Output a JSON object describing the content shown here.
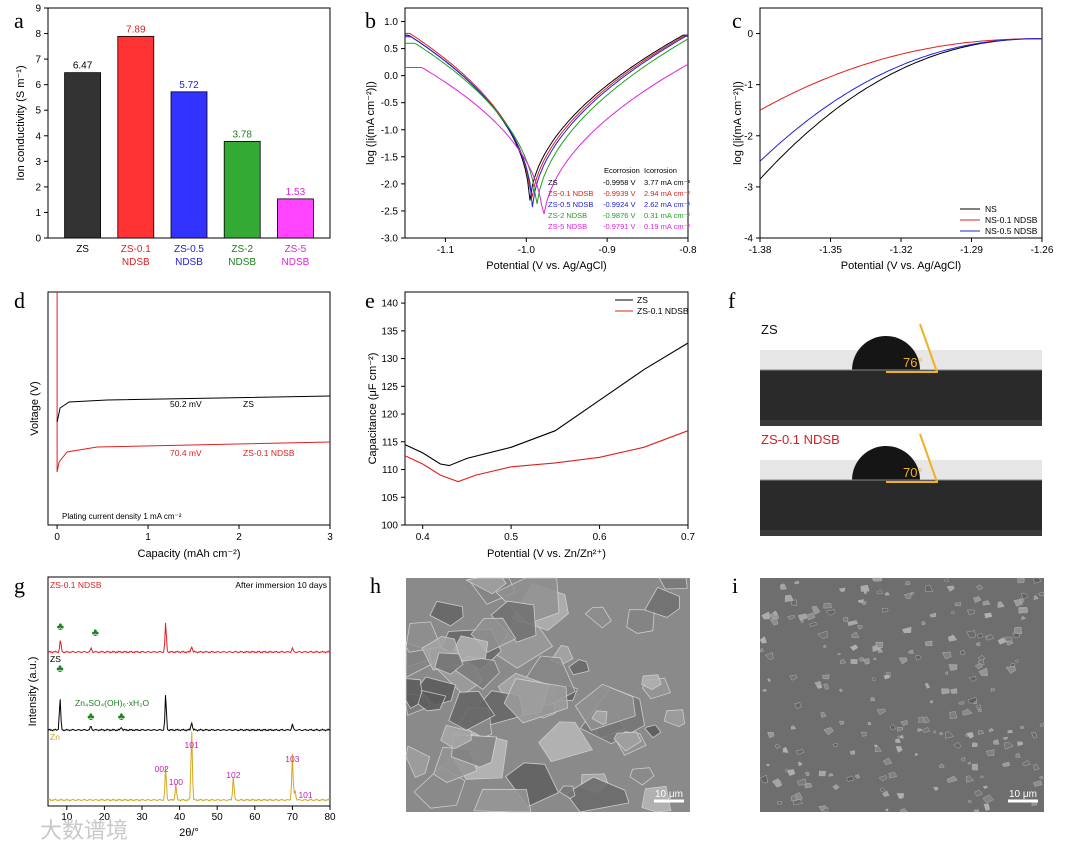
{
  "chart_data": [
    {
      "panel": "a",
      "type": "bar",
      "ylabel": "Ion conductivity (S m⁻¹)",
      "ylim": [
        0,
        9
      ],
      "categories": [
        "ZS",
        "ZS-0.1 NDSB",
        "ZS-0.5 NDSB",
        "ZS-2 NDSB",
        "ZS-5 NDSB"
      ],
      "values": [
        6.47,
        7.89,
        5.72,
        3.78,
        1.53
      ],
      "value_labels": [
        "6.47",
        "7.89",
        "5.72",
        "3.78",
        "1.53"
      ],
      "colors": [
        "#333333",
        "#ff3333",
        "#3333ff",
        "#33aa33",
        "#ff44ff"
      ],
      "label_colors": [
        "#000000",
        "#e02020",
        "#2020e0",
        "#208020",
        "#e020e0"
      ]
    },
    {
      "panel": "b",
      "type": "line",
      "xlabel": "Potential (V vs. Ag/AgCl)",
      "ylabel": "log (|i(mA cm⁻²)|)",
      "xlim": [
        -1.15,
        -0.8
      ],
      "ylim": [
        -3.0,
        1.25
      ],
      "x_ticks": [
        "-1.1",
        "-1.0",
        "-0.9",
        "-0.8"
      ],
      "y_ticks": [
        "1.0",
        "0.5",
        "0.0",
        "-0.5",
        "-1.0",
        "-1.5",
        "-2.0",
        "-2.5",
        "-3.0"
      ],
      "table_header": [
        "E",
        "corrosion",
        "I",
        "corrosion"
      ],
      "series": [
        {
          "name": "ZS",
          "ecorr": -0.9958,
          "ecorr_label": "-0.9958 V",
          "icorr_label": "3.77 mA cm⁻²",
          "color": "#000000",
          "left_y": 0.75,
          "right_y": 0.75,
          "min_y": -2.45
        },
        {
          "name": "ZS-0.1 NDSB",
          "ecorr": -0.9939,
          "ecorr_label": "-0.9939 V",
          "icorr_label": "2.94 mA cm⁻²",
          "color": "#e02020",
          "left_y": 0.78,
          "right_y": 0.74,
          "min_y": -2.5
        },
        {
          "name": "ZS-0.5 NDSB",
          "ecorr": -0.9924,
          "ecorr_label": "-0.9924 V",
          "icorr_label": "2.62 mA cm⁻²",
          "color": "#2020e0",
          "left_y": 0.72,
          "right_y": 0.73,
          "min_y": -2.55
        },
        {
          "name": "ZS-2 NDSB",
          "ecorr": -0.9876,
          "ecorr_label": "-0.9876 V",
          "icorr_label": "0.31 mA cm⁻²",
          "color": "#20a020",
          "left_y": 0.6,
          "right_y": 0.7,
          "min_y": -2.6
        },
        {
          "name": "ZS-5 NDSB",
          "ecorr": -0.9791,
          "ecorr_label": "-0.9791 V",
          "icorr_label": "0.19 mA cm⁻²",
          "color": "#e020e0",
          "left_y": 0.15,
          "right_y": 0.3,
          "min_y": -2.8
        }
      ]
    },
    {
      "panel": "c",
      "type": "line",
      "xlabel": "Potential (V vs. Ag/AgCl)",
      "ylabel": "log (|i(mA cm⁻²)|)",
      "xlim": [
        -1.38,
        -1.26
      ],
      "ylim": [
        -4,
        0.5
      ],
      "x_ticks": [
        "-1.38",
        "-1.35",
        "-1.32",
        "-1.29",
        "-1.26"
      ],
      "y_ticks": [
        "0",
        "-1",
        "-2",
        "-3",
        "-4"
      ],
      "series": [
        {
          "name": "NS",
          "color": "#000000",
          "y_start": -2.85
        },
        {
          "name": "NS-0.1 NDSB",
          "color": "#e02020",
          "y_start": -1.5
        },
        {
          "name": "NS-0.5 NDSB",
          "color": "#2020e0",
          "y_start": -2.5
        }
      ],
      "y_end": -0.1
    },
    {
      "panel": "d",
      "type": "line",
      "xlabel": "Capacity (mAh cm⁻²)",
      "ylabel": "Voltage (V)",
      "xlim": [
        -0.1,
        3
      ],
      "x_ticks": [
        "0",
        "1",
        "2",
        "3"
      ],
      "annotation": "Plating current density 1 mA cm⁻²",
      "series": [
        {
          "name": "ZS",
          "color": "#000000",
          "overpotential_label": "50.2 mV"
        },
        {
          "name": "ZS-0.1 NDSB",
          "color": "#e02020",
          "overpotential_label": "70.4 mV"
        }
      ]
    },
    {
      "panel": "e",
      "type": "line",
      "xlabel": "Potential (V vs. Zn/Zn²⁺)",
      "ylabel": "Capacitance (μF cm⁻²)",
      "xlim": [
        0.38,
        0.7
      ],
      "ylim": [
        100,
        142
      ],
      "x_ticks": [
        "0.4",
        "0.5",
        "0.6",
        "0.7"
      ],
      "y_ticks": [
        "100",
        "105",
        "110",
        "115",
        "120",
        "125",
        "130",
        "135",
        "140"
      ],
      "series": [
        {
          "name": "ZS",
          "color": "#000000",
          "x": [
            0.38,
            0.4,
            0.42,
            0.43,
            0.45,
            0.5,
            0.55,
            0.6,
            0.65,
            0.7
          ],
          "y": [
            114.5,
            113,
            111,
            110.7,
            112,
            114,
            117,
            122.5,
            128,
            132.8
          ]
        },
        {
          "name": "ZS-0.1 NDSB",
          "color": "#e02020",
          "x": [
            0.38,
            0.4,
            0.42,
            0.44,
            0.46,
            0.5,
            0.55,
            0.6,
            0.65,
            0.7
          ],
          "y": [
            112.5,
            111,
            109,
            107.8,
            109,
            110.5,
            111.2,
            112.2,
            114,
            117
          ]
        }
      ]
    },
    {
      "panel": "g",
      "type": "line",
      "xlabel": "2θ/°",
      "ylabel": "Intensity (a.u.)",
      "xlim": [
        5,
        80
      ],
      "x_ticks": [
        "10",
        "20",
        "30",
        "40",
        "50",
        "60",
        "70",
        "80"
      ],
      "annotation": "After immersion 10 days",
      "compound_label": "Zn₄SO₄(OH)₆·xH₂O",
      "series": [
        {
          "name": "ZS-0.1 NDSB",
          "color": "#e02020",
          "peaks": [
            [
              8.3,
              12
            ],
            [
              16.5,
              4
            ],
            [
              36.3,
              30
            ],
            [
              43.2,
              6
            ],
            [
              70,
              4
            ]
          ]
        },
        {
          "name": "ZS",
          "color": "#000000",
          "peaks": [
            [
              8.2,
              32
            ],
            [
              16.4,
              4
            ],
            [
              24.5,
              3
            ],
            [
              36.3,
              36
            ],
            [
              43.2,
              8
            ],
            [
              70,
              6
            ]
          ]
        },
        {
          "name": "Zn",
          "color": "#d9a520",
          "peaks": [
            [
              36.3,
              34
            ],
            [
              39,
              16
            ],
            [
              43.2,
              72
            ],
            [
              54.3,
              24
            ],
            [
              70,
              46
            ],
            [
              70.7,
              10
            ]
          ]
        }
      ],
      "hkl_labels": [
        {
          "text": "002",
          "x": 36.3
        },
        {
          "text": "100",
          "x": 39
        },
        {
          "text": "101",
          "x": 43.2
        },
        {
          "text": "102",
          "x": 54.3
        },
        {
          "text": "103",
          "x": 70
        },
        {
          "text": "101",
          "x": 73.5
        }
      ]
    }
  ],
  "panels": {
    "labels": [
      "a",
      "b",
      "c",
      "d",
      "e",
      "f",
      "g",
      "h",
      "i"
    ],
    "f": {
      "top_label": "ZS",
      "top_angle": "76°",
      "bottom_label": "ZS-0.1 NDSB",
      "bottom_angle": "70°"
    },
    "h": {
      "scale": "10 μm"
    },
    "i": {
      "scale": "10 μm"
    }
  },
  "watermark": "大数谱境"
}
